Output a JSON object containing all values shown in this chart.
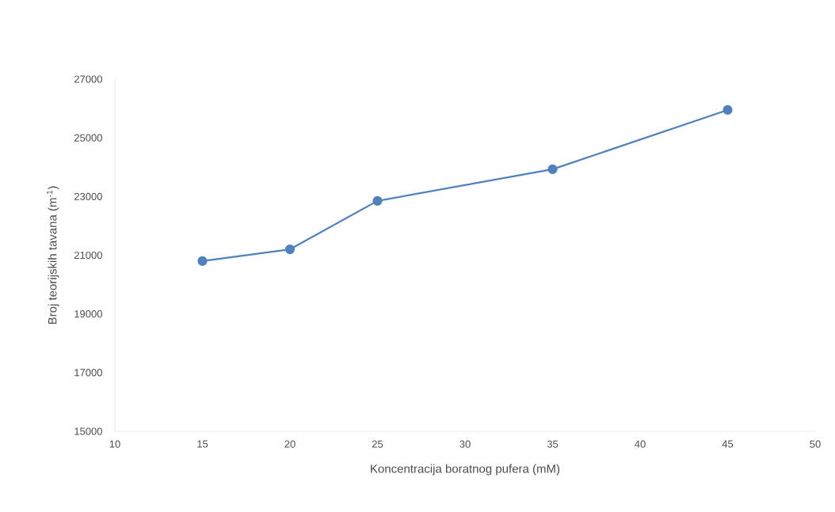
{
  "chart_data": {
    "type": "line",
    "xlabel": "Koncentracija boratnog pufera (mM)",
    "ylabel": "Broj teorijskih tavana (m$^{-1}$)",
    "x": [
      15,
      20,
      25,
      35,
      45
    ],
    "series": [
      {
        "color": "#4f81bd",
        "values": [
          20800,
          21200,
          22850,
          23930,
          25950
        ]
      }
    ],
    "xlim": [
      10,
      50
    ],
    "xticks": [
      10,
      15,
      20,
      25,
      30,
      35,
      40,
      45,
      50
    ],
    "ylim": [
      15000,
      27000
    ],
    "yticks": [
      15000,
      17000,
      19000,
      21000,
      23000,
      25000,
      27000
    ],
    "marker": "circle",
    "line_style": "solid"
  }
}
